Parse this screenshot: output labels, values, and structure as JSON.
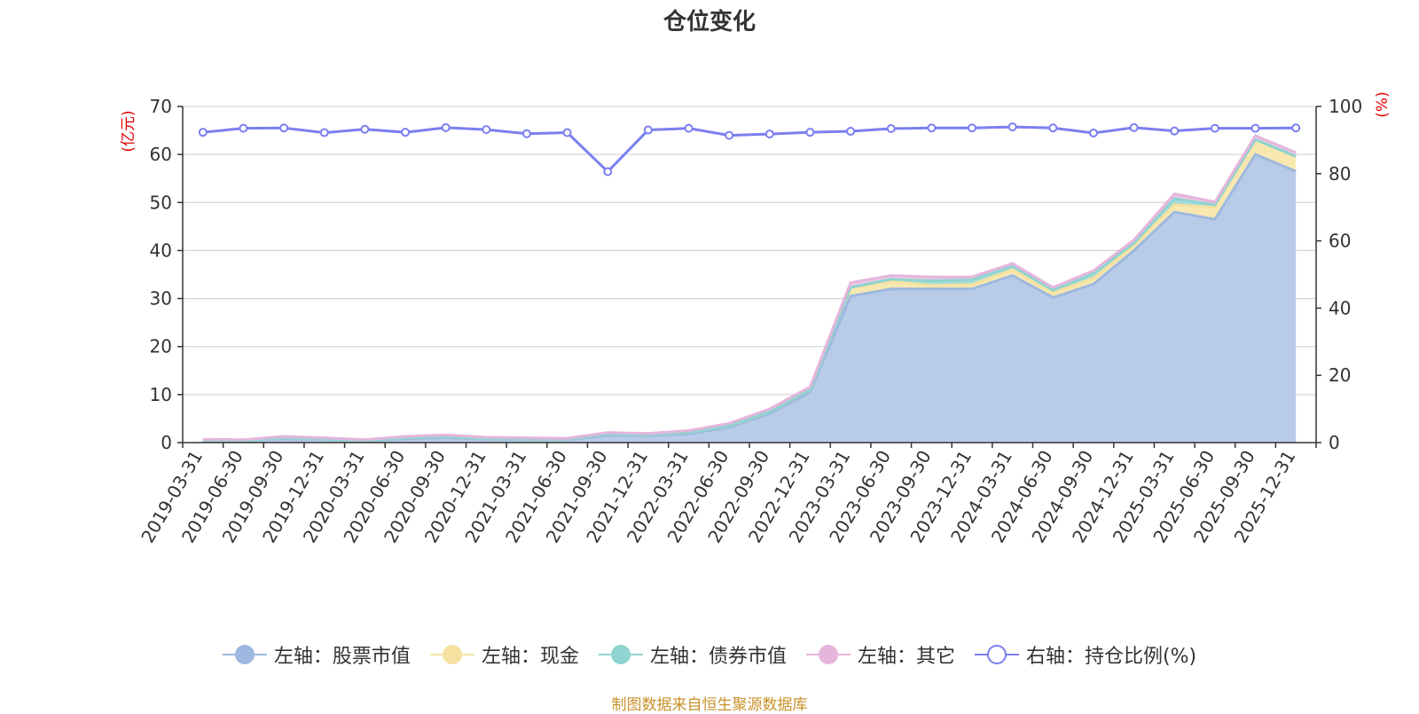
{
  "chart_data": {
    "type": "area",
    "title": "仓位变化",
    "left_unit": "(亿元)",
    "right_unit": "(%)",
    "x": [
      "2019-03-31",
      "2019-06-30",
      "2019-09-30",
      "2019-12-31",
      "2020-03-31",
      "2020-06-30",
      "2020-09-30",
      "2020-12-31",
      "2021-03-31",
      "2021-06-30",
      "2021-09-30",
      "2021-12-31",
      "2022-03-31",
      "2022-06-30",
      "2022-09-30",
      "2022-12-31",
      "2023-03-31",
      "2023-06-30",
      "2023-09-30",
      "2023-12-31",
      "2024-03-31",
      "2024-06-30",
      "2024-09-30",
      "2024-12-31",
      "2025-03-31",
      "2025-06-30",
      "2025-09-30",
      "2025-12-31"
    ],
    "x_tick_labels": [
      "2019-03-31",
      "2019-06-30",
      "2019-09-30",
      "2019-12-31",
      "2020-03-31",
      "2020-06-30",
      "2020-09-30",
      "2020-12-31",
      "2021-03-31",
      "2021-06-30",
      "2021-09-30",
      "2021-12-31",
      "2022-03-31",
      "2022-06-30",
      "2022-09-30",
      "2022-12-31",
      "2023-03-31",
      "2023-06-30",
      "2023-09-30",
      "2023-12-31",
      "2024-03-31",
      "2024-06-30",
      "2024-09-30",
      "2024-12-31",
      "2025-03-31",
      "2025-06-30",
      "2025-09-30",
      "2025-12-31"
    ],
    "left_axis": {
      "min": 0,
      "max": 70,
      "ticks": [
        0,
        10,
        20,
        30,
        40,
        50,
        60,
        70
      ]
    },
    "right_axis": {
      "min": 0,
      "max": 100,
      "ticks": [
        0,
        20,
        40,
        60,
        80,
        100
      ]
    },
    "grid": true,
    "legend_position": "bottom",
    "series": [
      {
        "name": "左轴：股票市值",
        "axis": "left",
        "stacked": true,
        "color": "#9db8e0",
        "fill": "#b8cbe9",
        "values": [
          0.4,
          0.3,
          0.8,
          0.6,
          0.3,
          0.8,
          1.0,
          0.7,
          0.6,
          0.6,
          1.5,
          1.4,
          1.8,
          3.2,
          6.0,
          10.5,
          30.5,
          32.0,
          32.0,
          32.0,
          34.8,
          30.2,
          33.0,
          40.0,
          48.0,
          46.5,
          60.0,
          56.5
        ]
      },
      {
        "name": "左轴：现金",
        "axis": "left",
        "stacked": true,
        "color": "#f5e2a0",
        "fill": "#f8e8b0",
        "values": [
          0.1,
          0.1,
          0.2,
          0.1,
          0.1,
          0.2,
          0.2,
          0.1,
          0.1,
          0.1,
          0.3,
          0.2,
          0.3,
          0.3,
          0.4,
          0.5,
          1.8,
          1.6,
          0.7,
          0.9,
          1.2,
          1.0,
          1.2,
          1.0,
          1.5,
          2.5,
          3.0,
          3.0
        ]
      },
      {
        "name": "左轴：债券市值",
        "axis": "left",
        "stacked": true,
        "color": "#8fd4d0",
        "fill": "#a8dcd8",
        "values": [
          0,
          0,
          0,
          0,
          0,
          0,
          0,
          0,
          0,
          0,
          0,
          0,
          0,
          0,
          0,
          0,
          0,
          0.4,
          1.0,
          1.0,
          0.7,
          0.5,
          1.0,
          0.5,
          1.3,
          0.5,
          0.1,
          0.1
        ]
      },
      {
        "name": "左轴：其它",
        "axis": "left",
        "stacked": true,
        "color": "#e5b5dc",
        "fill": "#eccbe6",
        "values": [
          0.2,
          0.2,
          0.3,
          0.3,
          0.2,
          0.3,
          0.4,
          0.3,
          0.3,
          0.2,
          0.3,
          0.3,
          0.4,
          0.5,
          0.6,
          0.6,
          1.0,
          0.8,
          0.8,
          0.6,
          0.6,
          0.6,
          0.6,
          0.7,
          1.0,
          0.6,
          0.8,
          0.8
        ]
      },
      {
        "name": "右轴：持仓比例(%)",
        "axis": "right",
        "stacked": false,
        "color": "#7b7ff0",
        "values": [
          92.3,
          93.5,
          93.6,
          92.2,
          93.2,
          92.3,
          93.7,
          93.1,
          91.9,
          92.2,
          80.6,
          93.0,
          93.5,
          91.4,
          91.8,
          92.3,
          92.6,
          93.4,
          93.6,
          93.6,
          93.9,
          93.6,
          92.1,
          93.7,
          92.7,
          93.5,
          93.5,
          93.6
        ]
      }
    ]
  },
  "source_note": "制图数据来自恒生聚源数据库"
}
